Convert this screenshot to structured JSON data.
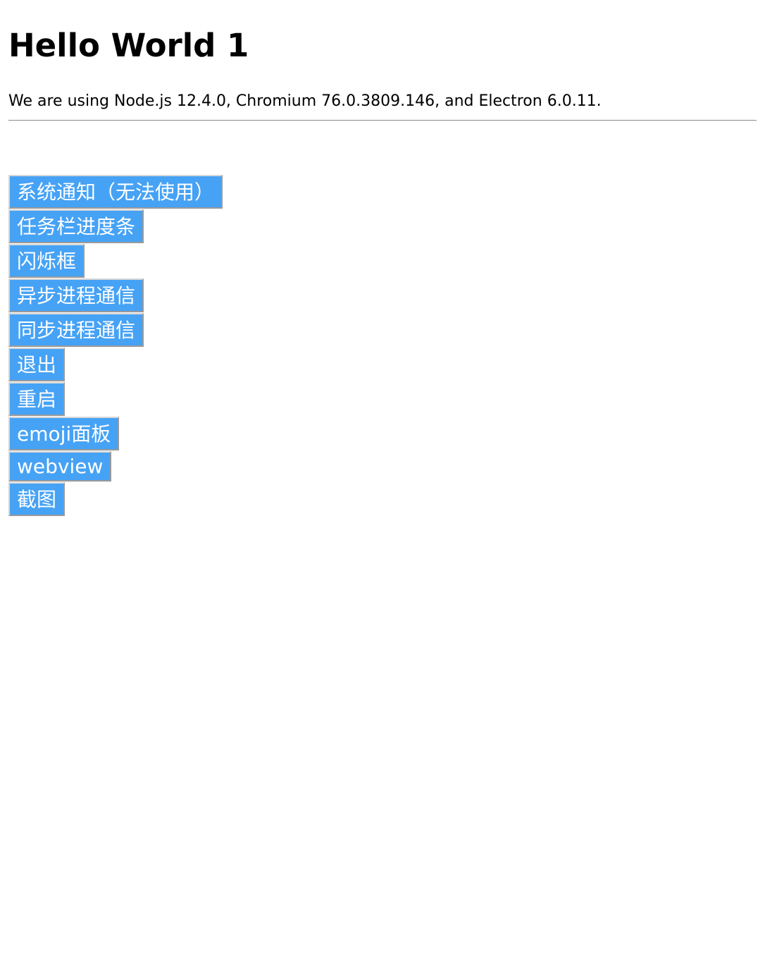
{
  "heading": "Hello World 1",
  "versions_text": "We are using Node.js 12.4.0, Chromium 76.0.3809.146, and Electron 6.0.11.",
  "buttons": {
    "notification": "系统通知（无法使用）",
    "taskbar_progress": "任务栏进度条",
    "flash_frame": "闪烁框",
    "async_ipc": "异步进程通信",
    "sync_ipc": "同步进程通信",
    "quit": "退出",
    "relaunch": "重启",
    "emoji_panel": "emoji面板",
    "webview": "webview",
    "screenshot": "截图"
  },
  "colors": {
    "button_background": "#46a2f5",
    "button_text": "#ffffff"
  }
}
